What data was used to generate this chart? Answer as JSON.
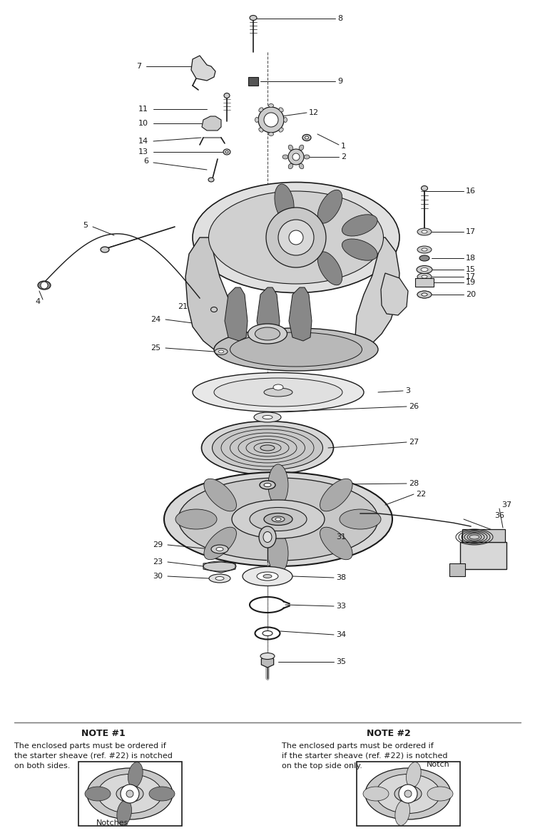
{
  "fig_width": 7.5,
  "fig_height": 11.68,
  "note1_title": "NOTE #1",
  "note1_text": "The enclosed parts must be ordered if\nthe starter sheave (ref. #22) is notched\non both sides.",
  "note1_label": "Notches",
  "note2_title": "NOTE #2",
  "note2_text": "The enclosed parts must be ordered if\nif the starter sheave (ref. #22) is notched\non the top side only.",
  "note2_label": "Notch",
  "line_color": "#1a1a1a",
  "bg_color": "#ffffff",
  "part_color": "#e8e8e8",
  "dark_color": "#444444"
}
